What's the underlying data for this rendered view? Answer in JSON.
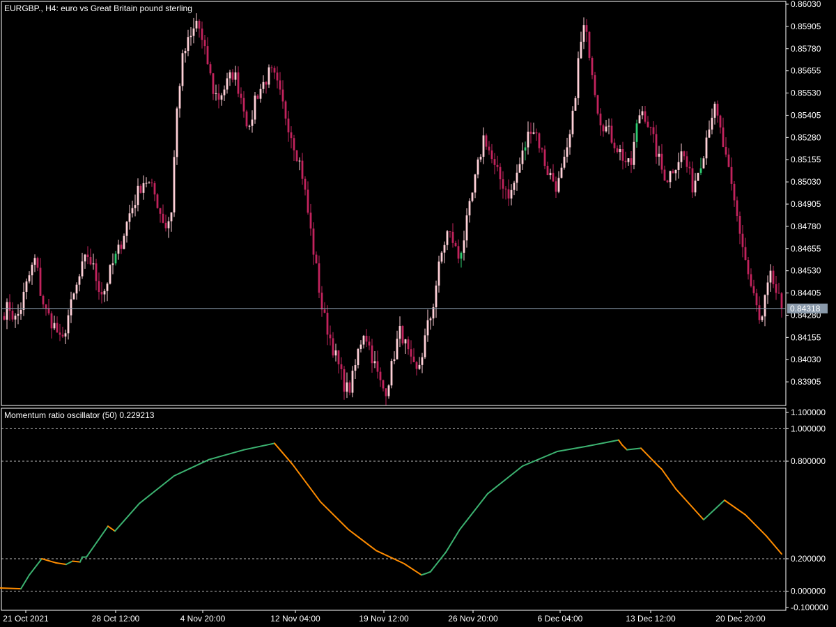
{
  "chart_data": [
    {
      "type": "candlestick",
      "title": "EURGBP., H4:  euro vs Great Britain pound sterling",
      "current_price": "0.84318",
      "current_value": 0.84318,
      "ylim": [
        0.8378,
        0.8603
      ],
      "y_ticks": [
        "0.86030",
        "0.85905",
        "0.85780",
        "0.85655",
        "0.85530",
        "0.85405",
        "0.85280",
        "0.85155",
        "0.85030",
        "0.84905",
        "0.84780",
        "0.84655",
        "0.84530",
        "0.84405",
        "0.84280",
        "0.84155",
        "0.84030",
        "0.83905"
      ],
      "colors": {
        "bull": "#ffd0d8",
        "bear": "#c2235d",
        "bull_alt": "#2ecc71",
        "current_line": "#8899aa",
        "current_tag": "#8a9aab"
      },
      "anchors": [
        [
          0.843,
          0.8433,
          0.8425,
          0.843,
          0.8442,
          0.8452,
          0.846,
          0.844,
          0.843,
          0.8425,
          0.842,
          0.841,
          0.8425,
          0.8435,
          0.8445,
          0.8455,
          0.8462,
          0.8455,
          0.8445,
          0.844,
          0.845,
          0.8458,
          0.8465,
          0.8475,
          0.8485,
          0.8492,
          0.85,
          0.8505,
          0.85,
          0.8495,
          0.8485,
          0.8478,
          0.8485,
          0.854,
          0.857,
          0.858,
          0.8585,
          0.8595,
          0.858,
          0.857,
          0.8555,
          0.855,
          0.8555,
          0.856,
          0.8565,
          0.8555,
          0.8545,
          0.853,
          0.855,
          0.8555,
          0.856,
          0.8565,
          0.856,
          0.855,
          0.854,
          0.853,
          0.852,
          0.851,
          0.849,
          0.847,
          0.845,
          0.843,
          0.842,
          0.841,
          0.84,
          0.839,
          0.8385,
          0.8395,
          0.841,
          0.842,
          0.841,
          0.84,
          0.839,
          0.8385,
          0.8395,
          0.841,
          0.842,
          0.841,
          0.84,
          0.8395,
          0.8405,
          0.842,
          0.843,
          0.845,
          0.8465,
          0.8475,
          0.847,
          0.846,
          0.847,
          0.8485,
          0.85,
          0.8515,
          0.853,
          0.852,
          0.851,
          0.8505,
          0.85,
          0.8495,
          0.8505,
          0.8515,
          0.8525,
          0.8535,
          0.853,
          0.852,
          0.851,
          0.8505,
          0.85,
          0.851,
          0.852,
          0.854,
          0.857,
          0.859,
          0.858,
          0.856,
          0.854,
          0.8535,
          0.853,
          0.8525,
          0.852,
          0.8515,
          0.851,
          0.853,
          0.8545,
          0.854,
          0.853,
          0.852,
          0.851,
          0.8505,
          0.851,
          0.8515,
          0.852,
          0.851,
          0.85,
          0.851,
          0.852,
          0.8535,
          0.8545,
          0.8535,
          0.852,
          0.8505,
          0.849,
          0.8475,
          0.846,
          0.8445,
          0.8435,
          0.842,
          0.844,
          0.845,
          0.844,
          0.84318
        ]
      ]
    },
    {
      "type": "line",
      "title": "Momentum ratio oscillator (50) 0.229213",
      "ylim": [
        -0.1,
        1.1
      ],
      "y_ticks": [
        "1.100000",
        "1.000000",
        "0.800000",
        "0.200000",
        "0.000000",
        "-0.100000"
      ],
      "levels": [
        1.0,
        0.8,
        0.2,
        0.0
      ],
      "colors": {
        "up": "#3cb371",
        "down": "#ff8c00"
      },
      "x": [
        0,
        30,
        42,
        60,
        80,
        95,
        104,
        115,
        118,
        124,
        155,
        165,
        200,
        250,
        300,
        350,
        394,
        420,
        460,
        500,
        540,
        580,
        605,
        612,
        618,
        640,
        660,
        700,
        750,
        800,
        840,
        888,
        893,
        900,
        920,
        945,
        950,
        970,
        1010,
        1040,
        1070,
        1100,
        1122
      ],
      "values": [
        0.02,
        0.015,
        0.1,
        0.2,
        0.175,
        0.165,
        0.185,
        0.18,
        0.21,
        0.21,
        0.4,
        0.37,
        0.54,
        0.71,
        0.81,
        0.87,
        0.91,
        0.78,
        0.55,
        0.38,
        0.25,
        0.17,
        0.1,
        0.11,
        0.12,
        0.24,
        0.38,
        0.6,
        0.77,
        0.86,
        0.89,
        0.93,
        0.9,
        0.87,
        0.88,
        0.77,
        0.75,
        0.63,
        0.44,
        0.56,
        0.47,
        0.34,
        0.229
      ]
    }
  ],
  "x_axis": {
    "labels": [
      {
        "text": "21 Oct 2021",
        "pos": 37
      },
      {
        "text": "28 Oct 12:00",
        "pos": 166
      },
      {
        "text": "4 Nov 20:00",
        "pos": 291
      },
      {
        "text": "12 Nov 04:00",
        "pos": 424
      },
      {
        "text": "19 Nov 12:00",
        "pos": 551
      },
      {
        "text": "26 Nov 20:00",
        "pos": 679
      },
      {
        "text": "6 Dec 04:00",
        "pos": 804
      },
      {
        "text": "13 Dec 12:00",
        "pos": 934
      },
      {
        "text": "20 Dec 20:00",
        "pos": 1063
      }
    ]
  }
}
